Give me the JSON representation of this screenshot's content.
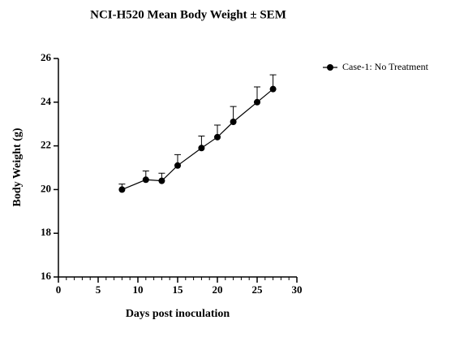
{
  "chart_data": {
    "type": "line",
    "title": "NCI-H520 Mean Body Weight ± SEM",
    "xlabel": "Days post inoculation",
    "ylabel": "Body Weight (g)",
    "x": [
      8,
      11,
      13,
      15,
      18,
      20,
      22,
      25,
      27
    ],
    "series": [
      {
        "name": "Case-1: No Treatment",
        "color": "#000000",
        "values": [
          20.0,
          20.45,
          20.4,
          21.1,
          21.9,
          22.4,
          23.1,
          24.0,
          24.6
        ],
        "errors": [
          0.25,
          0.4,
          0.35,
          0.5,
          0.55,
          0.55,
          0.7,
          0.7,
          0.65
        ]
      }
    ],
    "xlim": [
      0,
      30
    ],
    "xticks": [
      0,
      5,
      10,
      15,
      20,
      25,
      30
    ],
    "xminor_step": 1,
    "ylim": [
      16,
      26
    ],
    "yticks": [
      16,
      18,
      20,
      22,
      24,
      26
    ],
    "legend": "upper right"
  }
}
